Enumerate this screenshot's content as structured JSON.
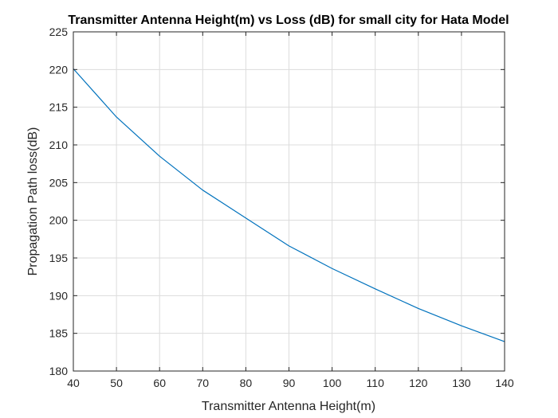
{
  "chart_data": {
    "type": "line",
    "title": "Transmitter Antenna Height(m) vs Loss (dB) for small city for Hata Model",
    "xlabel": "Transmitter Antenna Height(m)",
    "ylabel": "Propagation Path loss(dB)",
    "xlim": [
      40,
      140
    ],
    "ylim": [
      180,
      225
    ],
    "xticks": [
      "40",
      "50",
      "60",
      "70",
      "80",
      "90",
      "100",
      "110",
      "120",
      "130",
      "140"
    ],
    "yticks": [
      "180",
      "185",
      "190",
      "195",
      "200",
      "205",
      "210",
      "215",
      "220",
      "225"
    ],
    "grid": true,
    "series": [
      {
        "color": "#0072BD",
        "x": [
          40,
          50,
          60,
          70,
          80,
          90,
          100,
          110,
          120,
          130,
          140
        ],
        "y": [
          220.1,
          213.7,
          208.5,
          204.0,
          200.3,
          196.6,
          193.6,
          190.9,
          188.3,
          186.0,
          183.9
        ]
      }
    ]
  }
}
